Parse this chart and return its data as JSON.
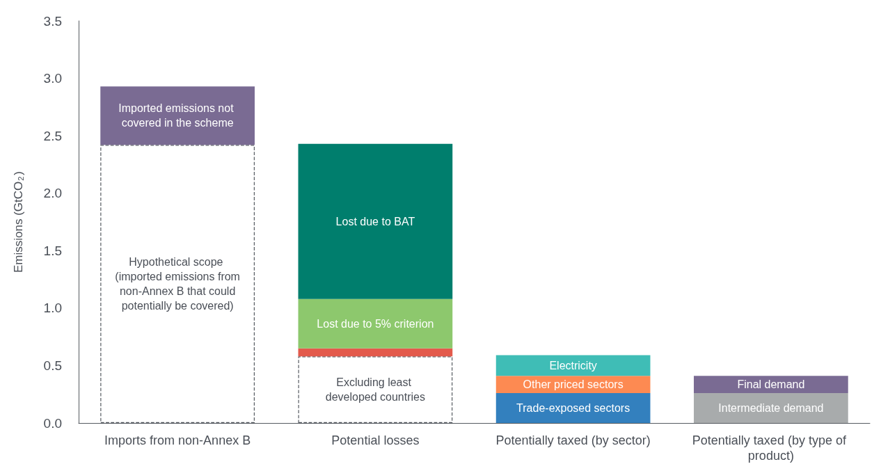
{
  "chart_data": {
    "type": "bar",
    "stacked": true,
    "ylabel": "Emissions (GtCO$_{2}$)",
    "categories": [
      "Imports from non-Annex B",
      "Potential losses",
      "Potentially taxed (by sector)",
      "Potentially taxed (by type of product)"
    ],
    "ylim": [
      0,
      3.5
    ],
    "yticks": [
      {
        "value": 0,
        "label": "0.0"
      },
      {
        "value": 0.5,
        "label": "0.5"
      },
      {
        "value": 1,
        "label": "1.0"
      },
      {
        "value": 1.5,
        "label": "1.5"
      },
      {
        "value": 2,
        "label": "2.0"
      },
      {
        "value": 2.5,
        "label": "2.5"
      },
      {
        "value": 3,
        "label": "3.0"
      },
      {
        "value": 3.5,
        "label": "3.5"
      }
    ],
    "grid": false,
    "series": [
      {
        "name": "Hypothetical scope (imported emissions from non-Annex B that could potentially be covered)",
        "color": "#ffffff",
        "line_style": "dashed",
        "values": [
          2.42,
          null,
          null,
          null
        ]
      },
      {
        "name": "Excluding least developed countries",
        "color": "#ffffff",
        "line_style": "dashed",
        "values": [
          null,
          0.58,
          null,
          null
        ]
      },
      {
        "color": "#e35a4c",
        "values": [
          null,
          0.07,
          null,
          null
        ]
      },
      {
        "name": "Lost due to 5% criterion",
        "color": "#8dc86d",
        "values": [
          null,
          0.43,
          null,
          null
        ]
      },
      {
        "name": "Lost due to BAT",
        "color": "#007e6d",
        "values": [
          null,
          1.35,
          null,
          null
        ]
      },
      {
        "name": "Imported emissions not covered in the scheme",
        "color": "#7a6b93",
        "values": [
          0.51,
          null,
          null,
          null
        ]
      },
      {
        "name": "Trade-exposed sectors",
        "color": "#3380be",
        "values": [
          null,
          null,
          0.26,
          null
        ]
      },
      {
        "name": "Other priced sectors",
        "color": "#fd8a52",
        "values": [
          null,
          null,
          0.15,
          null
        ]
      },
      {
        "name": "Electricity",
        "color": "#3fbdb6",
        "values": [
          null,
          null,
          0.18,
          null
        ]
      },
      {
        "name": "Intermediate demand",
        "color": "#a8abac",
        "values": [
          null,
          null,
          null,
          0.26
        ]
      },
      {
        "name": "Final demand",
        "color": "#7a6b93",
        "values": [
          null,
          null,
          null,
          0.15
        ]
      }
    ]
  }
}
